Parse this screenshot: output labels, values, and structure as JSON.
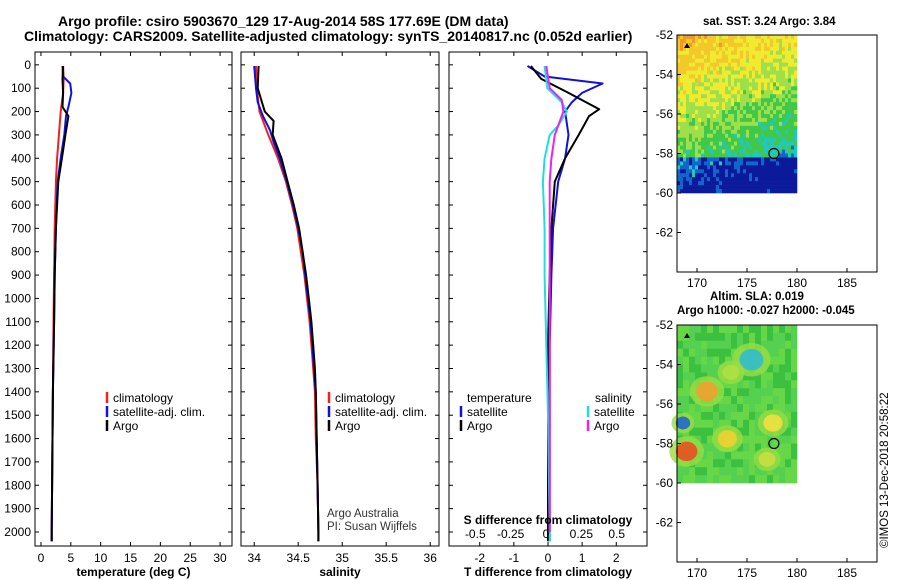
{
  "titles": {
    "line1": "Argo profile: csiro 5903670_129 17-Aug-2014 58S 177.69E (DM data)",
    "line2": "Climatology: CARS2009. Satellite-adjusted climatology: synTS_20140817.nc (0.052d earlier)"
  },
  "credit": {
    "line1": "Argo Australia",
    "line2": "PI: Susan Wijffels",
    "imos": "©IMOS 13-Dec-2018 20:58:22"
  },
  "colors": {
    "climatology": "#ee2222",
    "satellite": "#1111dd",
    "argo": "#000000",
    "sal_satellite": "#22dddd",
    "sal_argo": "#ee22ee"
  },
  "depth_ticks": [
    0,
    100,
    200,
    300,
    400,
    500,
    600,
    700,
    800,
    900,
    1000,
    1100,
    1200,
    1300,
    1400,
    1500,
    1600,
    1700,
    1800,
    1900,
    2000
  ],
  "chart_data": [
    {
      "type": "line",
      "xlabel": "temperature (deg C)",
      "xlim": [
        -1,
        32
      ],
      "ylim": [
        2060,
        -55
      ],
      "xticks": [
        0,
        5,
        10,
        15,
        20,
        25,
        30
      ],
      "legend": [
        "climatology",
        "satellite-adj. clim.",
        "Argo"
      ],
      "series": [
        {
          "name": "climatology",
          "color": "climatology",
          "points": [
            [
              3.7,
              5
            ],
            [
              3.8,
              60
            ],
            [
              3.7,
              120
            ],
            [
              3.3,
              200
            ],
            [
              3.0,
              300
            ],
            [
              2.7,
              400
            ],
            [
              2.5,
              500
            ],
            [
              2.3,
              700
            ],
            [
              2.2,
              900
            ],
            [
              2.1,
              1100
            ],
            [
              2.0,
              1400
            ],
            [
              1.9,
              1700
            ],
            [
              1.8,
              2000
            ],
            [
              1.8,
              2040
            ]
          ]
        },
        {
          "name": "satellite-adj. clim.",
          "color": "satellite",
          "points": [
            [
              3.6,
              5
            ],
            [
              3.7,
              50
            ],
            [
              4.9,
              80
            ],
            [
              5.1,
              120
            ],
            [
              4.6,
              180
            ],
            [
              4.2,
              220
            ],
            [
              3.9,
              300
            ],
            [
              3.3,
              400
            ],
            [
              2.8,
              500
            ],
            [
              2.5,
              700
            ],
            [
              2.3,
              900
            ],
            [
              2.2,
              1100
            ],
            [
              2.0,
              1400
            ],
            [
              1.9,
              1700
            ],
            [
              1.8,
              2000
            ],
            [
              1.8,
              2040
            ]
          ]
        },
        {
          "name": "Argo",
          "color": "argo",
          "points": [
            [
              3.7,
              5
            ],
            [
              3.6,
              60
            ],
            [
              3.7,
              120
            ],
            [
              3.6,
              180
            ],
            [
              4.6,
              220
            ],
            [
              4.1,
              300
            ],
            [
              3.5,
              400
            ],
            [
              2.9,
              500
            ],
            [
              2.5,
              700
            ],
            [
              2.3,
              900
            ],
            [
              2.2,
              1100
            ],
            [
              2.0,
              1400
            ],
            [
              1.9,
              1700
            ],
            [
              1.8,
              2000
            ],
            [
              1.8,
              2040
            ]
          ]
        }
      ]
    },
    {
      "type": "line",
      "xlabel": "salinity",
      "xlim": [
        33.85,
        36.1
      ],
      "ylim": [
        2060,
        -55
      ],
      "xticks": [
        34,
        34.5,
        35,
        35.5,
        36
      ],
      "xticklabels": [
        "34",
        "34.5",
        "35",
        "35.5",
        "36"
      ],
      "legend": [
        "climatology",
        "satellite-adj. clim.",
        "Argo"
      ],
      "series": [
        {
          "name": "climatology",
          "color": "climatology",
          "points": [
            [
              34.02,
              5
            ],
            [
              34.03,
              100
            ],
            [
              34.06,
              200
            ],
            [
              34.16,
              300
            ],
            [
              34.27,
              400
            ],
            [
              34.36,
              500
            ],
            [
              34.43,
              600
            ],
            [
              34.49,
              700
            ],
            [
              34.53,
              800
            ],
            [
              34.57,
              900
            ],
            [
              34.6,
              1000
            ],
            [
              34.63,
              1100
            ],
            [
              34.65,
              1200
            ],
            [
              34.67,
              1300
            ],
            [
              34.69,
              1400
            ],
            [
              34.7,
              1600
            ],
            [
              34.72,
              1800
            ],
            [
              34.73,
              2000
            ],
            [
              34.73,
              2040
            ]
          ]
        },
        {
          "name": "satellite-adj. clim.",
          "color": "satellite",
          "points": [
            [
              34.0,
              5
            ],
            [
              34.02,
              100
            ],
            [
              34.04,
              160
            ],
            [
              34.1,
              220
            ],
            [
              34.18,
              280
            ],
            [
              34.22,
              330
            ],
            [
              34.29,
              400
            ],
            [
              34.37,
              500
            ],
            [
              34.44,
              600
            ],
            [
              34.5,
              700
            ],
            [
              34.55,
              800
            ],
            [
              34.58,
              900
            ],
            [
              34.61,
              1000
            ],
            [
              34.64,
              1100
            ],
            [
              34.66,
              1200
            ],
            [
              34.68,
              1300
            ],
            [
              34.7,
              1400
            ],
            [
              34.71,
              1600
            ],
            [
              34.72,
              1800
            ],
            [
              34.73,
              2000
            ],
            [
              34.73,
              2040
            ]
          ]
        },
        {
          "name": "Argo",
          "color": "argo",
          "points": [
            [
              34.05,
              5
            ],
            [
              34.04,
              100
            ],
            [
              34.12,
              200
            ],
            [
              34.22,
              240
            ],
            [
              34.21,
              300
            ],
            [
              34.31,
              400
            ],
            [
              34.38,
              500
            ],
            [
              34.45,
              600
            ],
            [
              34.51,
              700
            ],
            [
              34.55,
              800
            ],
            [
              34.59,
              900
            ],
            [
              34.62,
              1000
            ],
            [
              34.65,
              1100
            ],
            [
              34.67,
              1200
            ],
            [
              34.69,
              1300
            ],
            [
              34.7,
              1400
            ],
            [
              34.71,
              1600
            ],
            [
              34.72,
              1800
            ],
            [
              34.73,
              2000
            ],
            [
              34.73,
              2040
            ]
          ]
        }
      ]
    },
    {
      "type": "line",
      "xlabel": "T difference from climatology",
      "xlabel2": "S difference from climatology",
      "xlim": [
        -2.9,
        2.9
      ],
      "ylim": [
        2060,
        -55
      ],
      "xticks": [
        -2,
        -1,
        0,
        1,
        2
      ],
      "xticks2": [
        -0.5,
        -0.25,
        0,
        0.25,
        0.5
      ],
      "xticks2_labels": [
        "-0.5",
        "-0.25",
        "0",
        "0.25",
        "0.5"
      ],
      "legend_temperature": {
        "title": "temperature",
        "items": [
          "satellite",
          "Argo"
        ]
      },
      "legend_salinity": {
        "title": "salinity",
        "items": [
          "satellite",
          "Argo"
        ]
      },
      "series": [
        {
          "name": "temperature satellite",
          "color": "satellite",
          "points": [
            [
              -0.6,
              5
            ],
            [
              -0.1,
              50
            ],
            [
              1.6,
              80
            ],
            [
              1.0,
              120
            ],
            [
              0.7,
              160
            ],
            [
              0.5,
              200
            ],
            [
              0.6,
              300
            ],
            [
              0.5,
              400
            ],
            [
              0.3,
              500
            ],
            [
              0.15,
              700
            ],
            [
              0.1,
              900
            ],
            [
              0.05,
              1200
            ],
            [
              0.05,
              1500
            ],
            [
              0.05,
              2000
            ],
            [
              0.05,
              2040
            ]
          ]
        },
        {
          "name": "temperature Argo",
          "color": "argo",
          "points": [
            [
              -0.5,
              5
            ],
            [
              -0.2,
              60
            ],
            [
              0.6,
              120
            ],
            [
              1.5,
              190
            ],
            [
              1.2,
              220
            ],
            [
              0.9,
              300
            ],
            [
              0.5,
              400
            ],
            [
              0.2,
              500
            ],
            [
              0.1,
              700
            ],
            [
              0.05,
              900
            ],
            [
              0,
              1200
            ],
            [
              0,
              1500
            ],
            [
              0,
              2000
            ],
            [
              0,
              2040
            ]
          ]
        },
        {
          "name": "salinity satellite",
          "color": "sal_satellite",
          "points": [
            [
              -0.1,
              5
            ],
            [
              -0.02,
              100
            ],
            [
              0.4,
              160
            ],
            [
              0.55,
              200
            ],
            [
              0.3,
              260
            ],
            [
              0.05,
              300
            ],
            [
              -0.1,
              400
            ],
            [
              -0.15,
              500
            ],
            [
              -0.1,
              700
            ],
            [
              -0.1,
              900
            ],
            [
              -0.05,
              1200
            ],
            [
              0,
              1500
            ],
            [
              0.05,
              2000
            ],
            [
              0.05,
              2040
            ]
          ]
        },
        {
          "name": "salinity Argo",
          "color": "sal_argo",
          "points": [
            [
              -0.05,
              5
            ],
            [
              0.05,
              100
            ],
            [
              0.4,
              150
            ],
            [
              0.45,
              200
            ],
            [
              0.35,
              240
            ],
            [
              0.2,
              300
            ],
            [
              0.1,
              400
            ],
            [
              0.05,
              500
            ],
            [
              0.05,
              1500
            ],
            [
              0.05,
              2000
            ]
          ]
        }
      ]
    },
    {
      "type": "heatmap",
      "title": "sat. SST: 3.24 Argo: 3.84",
      "xlim": [
        168,
        188
      ],
      "ylim": [
        -52,
        -64
      ],
      "xticks": [
        170,
        175,
        180,
        185
      ],
      "yticks": [
        -52,
        -54,
        -56,
        -58,
        -60,
        -62
      ],
      "yticklabels": [
        "-52",
        "-54",
        "-56",
        "-58",
        "-60",
        "-62"
      ],
      "data_extent": {
        "lon": [
          168,
          180
        ],
        "lat": [
          -52,
          -60
        ]
      },
      "profile_location": {
        "lon": 177.69,
        "lat": -58
      },
      "palette": [
        "#c27a18",
        "#f09a22",
        "#f2c82a",
        "#f0ea30",
        "#9fe04a",
        "#3fc84a",
        "#22c8c0",
        "#1166cc",
        "#0a1a9a"
      ]
    },
    {
      "type": "heatmap",
      "title": "Altim. SLA: 0.019",
      "subtitle": "Argo h1000: -0.027 h2000: -0.045",
      "xlim": [
        168,
        188
      ],
      "ylim": [
        -52,
        -64
      ],
      "xticks": [
        170,
        175,
        180,
        185
      ],
      "yticks": [
        -52,
        -54,
        -56,
        -58,
        -60,
        -62
      ],
      "yticklabels": [
        "-52",
        "-54",
        "-56",
        "-58",
        "-60",
        "-62"
      ],
      "data_extent": {
        "lon": [
          168,
          180
        ],
        "lat": [
          -52,
          -60
        ]
      },
      "profile_location": {
        "lon": 177.69,
        "lat": -58
      }
    }
  ]
}
